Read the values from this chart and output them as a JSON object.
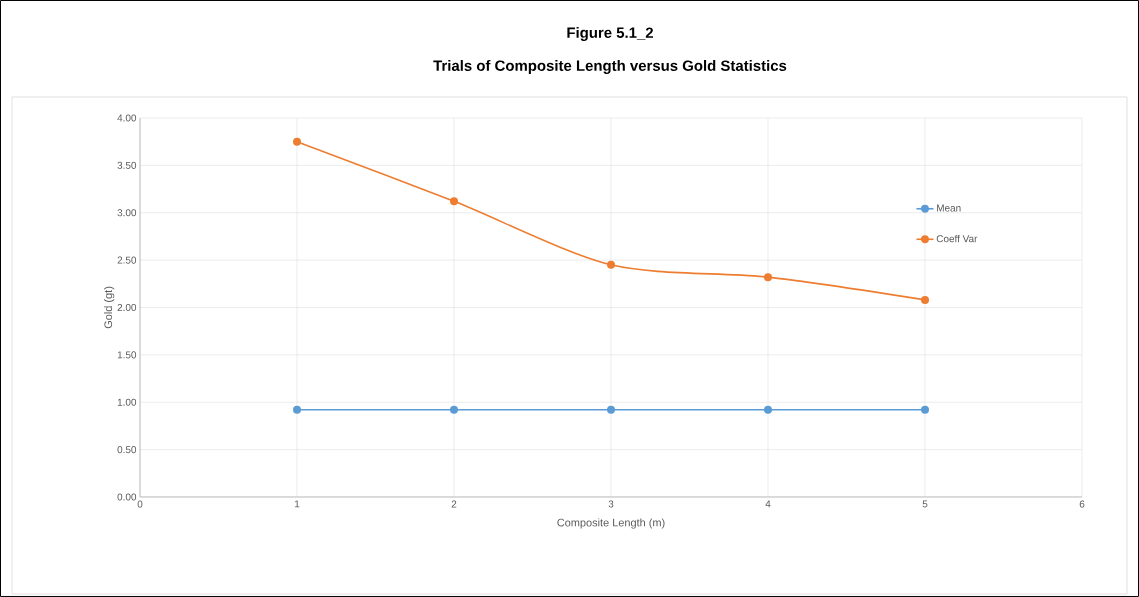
{
  "chart_data": {
    "type": "line",
    "title": "Figure 5.1_2",
    "subtitle": "Trials of Composite Length versus Gold Statistics",
    "xlabel": "Composite Length (m)",
    "ylabel": "Gold (gt)",
    "x": [
      1,
      2,
      3,
      4,
      5
    ],
    "series": [
      {
        "name": "Mean",
        "color": "#5b9bd5",
        "values": [
          0.92,
          0.92,
          0.92,
          0.92,
          0.92
        ]
      },
      {
        "name": "Coeff Var",
        "color": "#ed7d31",
        "values": [
          3.75,
          3.12,
          2.45,
          2.32,
          2.08
        ]
      }
    ],
    "xlim": [
      0,
      6
    ],
    "xticks": [
      0,
      1,
      2,
      3,
      4,
      5,
      6
    ],
    "ylim": [
      0,
      4
    ],
    "yticks": [
      {
        "value": 0,
        "label": "0.00"
      },
      {
        "value": 0.5,
        "label": "0.50"
      },
      {
        "value": 1,
        "label": "1.00"
      },
      {
        "value": 1.5,
        "label": "1.50"
      },
      {
        "value": 2,
        "label": "2.00"
      },
      {
        "value": 2.5,
        "label": "2.50"
      },
      {
        "value": 3,
        "label": "3.00"
      },
      {
        "value": 3.5,
        "label": "3.50"
      },
      {
        "value": 4,
        "label": "4.00"
      }
    ],
    "grid": true,
    "legend": "right",
    "marker": "circle",
    "line_style": "solid"
  }
}
